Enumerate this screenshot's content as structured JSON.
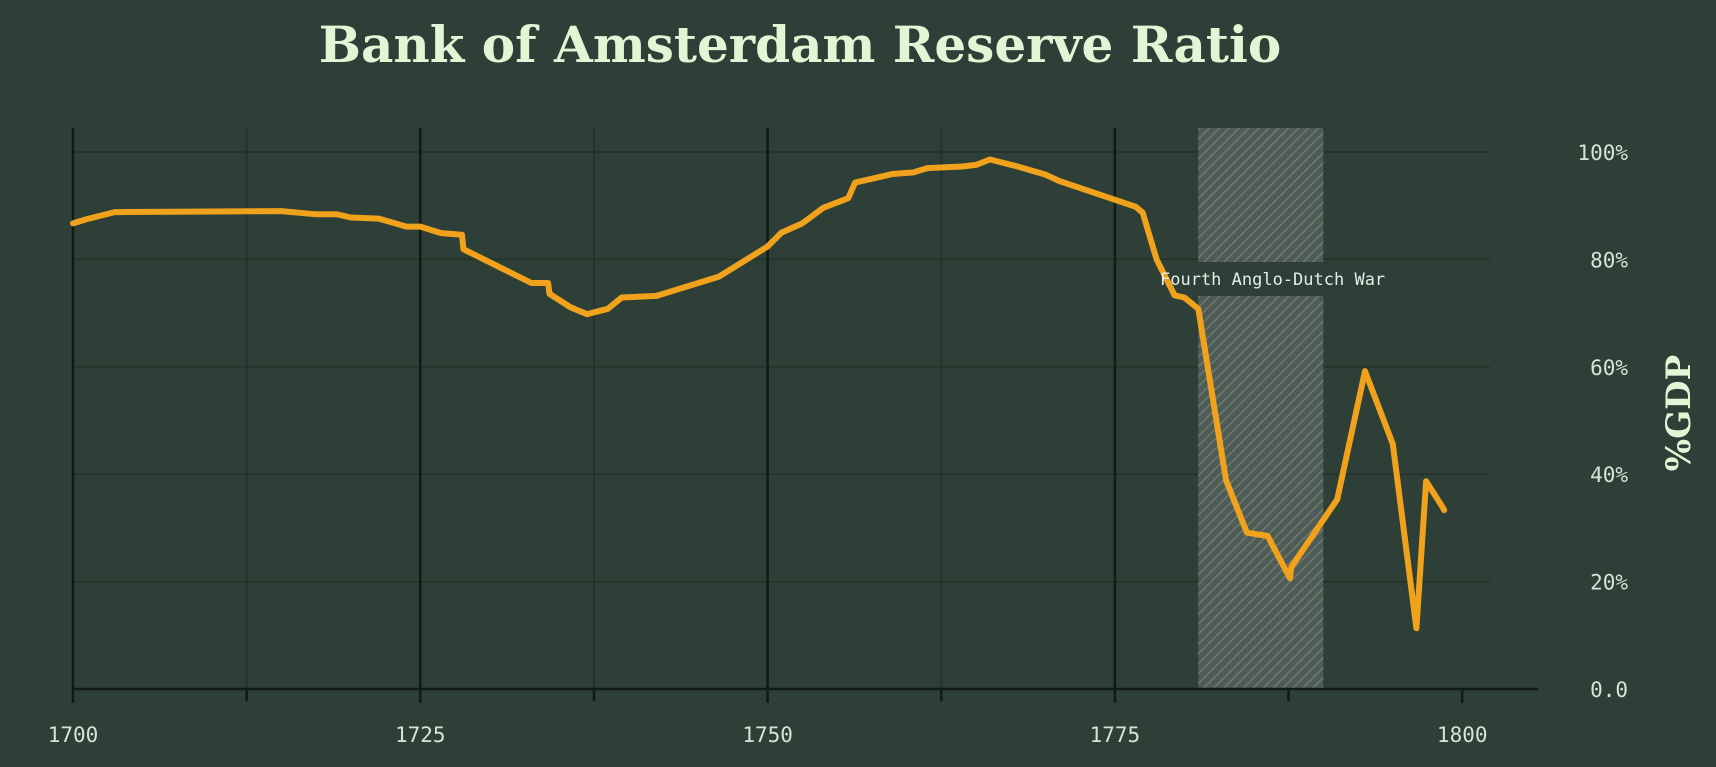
{
  "chart_data": {
    "type": "line",
    "title": "Bank of Amsterdam Reserve Ratio",
    "xlabel": "",
    "ylabel": "%GDP",
    "xlim": [
      1700,
      1802
    ],
    "ylim": [
      0,
      100
    ],
    "x_ticks": [
      1700,
      1725,
      1750,
      1775,
      1800
    ],
    "x_tick_labels": [
      "1700",
      "1725",
      "1750",
      "1775",
      "1800"
    ],
    "y_ticks": [
      0,
      20,
      40,
      60,
      80,
      100
    ],
    "y_tick_labels": [
      "0.0",
      "20%",
      "40%",
      "60%",
      "80%",
      "100%"
    ],
    "grid": true,
    "line_color": "#f0a21c",
    "shaded_region": {
      "label": "Fourth Anglo-Dutch War",
      "x_start": 1781,
      "x_end": 1790
    },
    "series": [
      {
        "x": [
          1700,
          1701,
          1703,
          1715,
          1717.5,
          1719,
          1720,
          1722,
          1724,
          1725,
          1726.5,
          1728,
          1728.1,
          1733,
          1734.2,
          1734.3,
          1735.8,
          1737,
          1738.5,
          1739.5,
          1742,
          1746.5,
          1750,
          1751,
          1752.5,
          1754,
          1755.8,
          1756.3,
          1758,
          1759,
          1760.5,
          1761.5,
          1764,
          1765,
          1766,
          1768,
          1770,
          1771,
          1776.5,
          1777,
          1778,
          1779.3,
          1780,
          1781,
          1783,
          1784.5,
          1786,
          1787.6,
          1787.7,
          1791,
          1793,
          1795,
          1796.7,
          1797.4,
          1798.6,
          1798.7
        ],
        "y": [
          86.7,
          87.5,
          88.8,
          89.0,
          88.4,
          88.4,
          87.8,
          87.6,
          86.1,
          86.1,
          84.9,
          84.6,
          81.9,
          75.6,
          75.6,
          73.6,
          71.1,
          69.8,
          70.8,
          72.9,
          73.2,
          76.8,
          82.4,
          85.0,
          86.7,
          89.6,
          91.4,
          94.3,
          95.3,
          95.9,
          96.2,
          97.0,
          97.3,
          97.6,
          98.6,
          97.3,
          95.8,
          94.6,
          89.8,
          88.7,
          80.0,
          73.3,
          72.9,
          70.8,
          38.9,
          29.1,
          28.5,
          20.6,
          22.7,
          35.3,
          59.2,
          45.6,
          11.3,
          38.7,
          33.8,
          33.3
        ]
      }
    ]
  }
}
